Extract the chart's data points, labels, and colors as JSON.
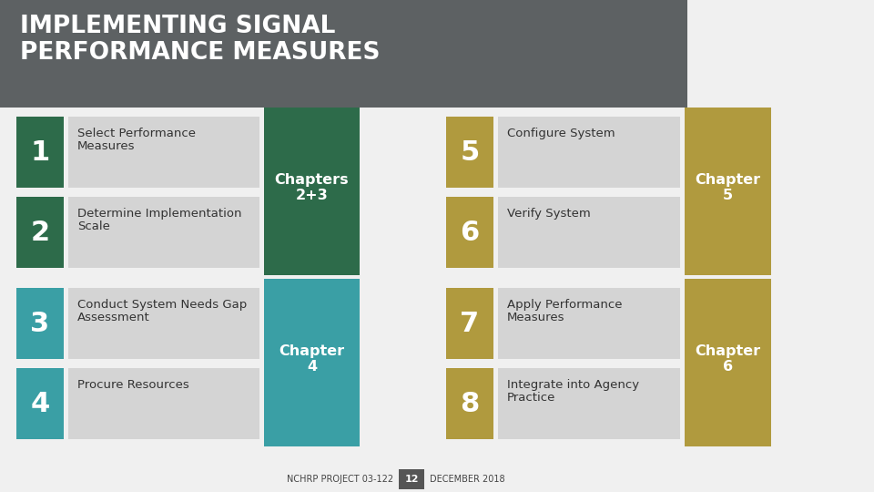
{
  "title_line1": "IMPLEMENTING SIGNAL",
  "title_line2": "PERFORMANCE MEASURES",
  "title_bg": "#5d6163",
  "title_text_color": "#ffffff",
  "bg_color": "#f0f0f0",
  "dark_green": "#2d6b4a",
  "teal": "#3a9fa5",
  "gold": "#b09a3e",
  "light_gray": "#d4d4d4",
  "dark_gray": "#555555",
  "footer_bg": "#555555",
  "footer_text": "NCHRP PROJECT 03-122",
  "footer_page": "12",
  "footer_date": "DECEMBER 2018",
  "left_items": [
    {
      "num": "1",
      "text": "Select Performance\nMeasures"
    },
    {
      "num": "2",
      "text": "Determine Implementation\nScale"
    },
    {
      "num": "3",
      "text": "Conduct System Needs Gap\nAssessment"
    },
    {
      "num": "4",
      "text": "Procure Resources"
    }
  ],
  "right_items": [
    {
      "num": "5",
      "text": "Configure System"
    },
    {
      "num": "6",
      "text": "Verify System"
    },
    {
      "num": "7",
      "text": "Apply Performance\nMeasures"
    },
    {
      "num": "8",
      "text": "Integrate into Agency\nPractice"
    }
  ],
  "chapter_label_12": "Chapters\n2+3",
  "chapter_label_4": "Chapter\n4",
  "chapter_label_5": "Chapter\n5",
  "chapter_label_6": "Chapter\n6"
}
